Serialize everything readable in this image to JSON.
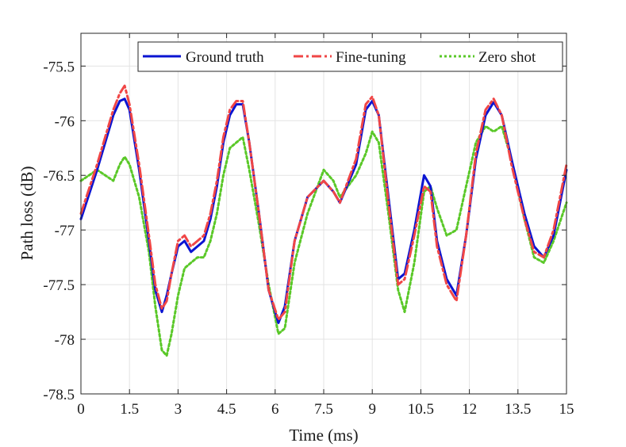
{
  "chart_data": {
    "type": "line",
    "title": "",
    "xlabel": "Time (ms)",
    "ylabel": "Path loss (dB)",
    "xlim": [
      0,
      15
    ],
    "ylim": [
      -78.5,
      -75.2
    ],
    "xticks": [
      0,
      1.5,
      3,
      4.5,
      6,
      7.5,
      9,
      10.5,
      12,
      13.5,
      15
    ],
    "xtick_labels": [
      "0",
      "1.5",
      "3",
      "4.5",
      "6",
      "7.5",
      "9",
      "10.5",
      "12",
      "13.5",
      "15"
    ],
    "yticks": [
      -78.5,
      -78,
      -77.5,
      -77,
      -76.5,
      -76,
      -75.5
    ],
    "ytick_labels": [
      "-78.5",
      "-78",
      "-77.5",
      "-77",
      "-76.5",
      "-76",
      "-75.5"
    ],
    "grid": true,
    "legend_position": "top-right",
    "colors": {
      "ground_truth": "#0a14d2",
      "fine_tuning": "#f04646",
      "zero_shot": "#5ac828"
    },
    "x": [
      0,
      0.5,
      1,
      1.2,
      1.35,
      1.5,
      1.8,
      2.1,
      2.3,
      2.5,
      2.65,
      2.8,
      3,
      3.2,
      3.4,
      3.6,
      3.8,
      4,
      4.2,
      4.4,
      4.6,
      4.8,
      5,
      5.2,
      5.5,
      5.8,
      6.1,
      6.3,
      6.6,
      7,
      7.5,
      7.8,
      8,
      8.5,
      8.8,
      9,
      9.2,
      9.5,
      9.8,
      10,
      10.3,
      10.6,
      10.8,
      11,
      11.3,
      11.6,
      11.9,
      12.2,
      12.5,
      12.75,
      13,
      13.3,
      13.7,
      14,
      14.3,
      14.6,
      15
    ],
    "series": [
      {
        "name": "Ground truth",
        "values": [
          -76.9,
          -76.45,
          -75.95,
          -75.82,
          -75.8,
          -75.9,
          -76.45,
          -77.1,
          -77.55,
          -77.75,
          -77.6,
          -77.4,
          -77.15,
          -77.1,
          -77.2,
          -77.15,
          -77.1,
          -76.9,
          -76.6,
          -76.2,
          -75.95,
          -75.85,
          -75.85,
          -76.2,
          -76.85,
          -77.55,
          -77.85,
          -77.7,
          -77.1,
          -76.7,
          -76.55,
          -76.65,
          -76.75,
          -76.4,
          -75.9,
          -75.82,
          -75.95,
          -76.7,
          -77.45,
          -77.4,
          -77.0,
          -76.5,
          -76.6,
          -77.1,
          -77.45,
          -77.6,
          -77.05,
          -76.35,
          -75.95,
          -75.83,
          -75.95,
          -76.35,
          -76.85,
          -77.15,
          -77.25,
          -77.05,
          -76.45
        ]
      },
      {
        "name": "Fine-tuning",
        "values": [
          -76.85,
          -76.4,
          -75.9,
          -75.75,
          -75.68,
          -75.85,
          -76.4,
          -77.05,
          -77.5,
          -77.72,
          -77.65,
          -77.4,
          -77.1,
          -77.05,
          -77.15,
          -77.1,
          -77.05,
          -76.85,
          -76.55,
          -76.15,
          -75.9,
          -75.82,
          -75.82,
          -76.2,
          -76.85,
          -77.55,
          -77.82,
          -77.75,
          -77.1,
          -76.7,
          -76.55,
          -76.65,
          -76.75,
          -76.35,
          -75.85,
          -75.78,
          -75.95,
          -76.75,
          -77.5,
          -77.45,
          -77.05,
          -76.6,
          -76.65,
          -77.15,
          -77.5,
          -77.65,
          -77.05,
          -76.3,
          -75.9,
          -75.8,
          -75.95,
          -76.4,
          -76.9,
          -77.2,
          -77.25,
          -77.0,
          -76.4
        ]
      },
      {
        "name": "Zero shot",
        "values": [
          -76.55,
          -76.45,
          -76.55,
          -76.4,
          -76.33,
          -76.4,
          -76.7,
          -77.2,
          -77.7,
          -78.1,
          -78.15,
          -77.95,
          -77.6,
          -77.35,
          -77.3,
          -77.25,
          -77.25,
          -77.1,
          -76.85,
          -76.5,
          -76.25,
          -76.2,
          -76.15,
          -76.45,
          -76.95,
          -77.5,
          -77.95,
          -77.9,
          -77.3,
          -76.85,
          -76.45,
          -76.55,
          -76.7,
          -76.5,
          -76.3,
          -76.1,
          -76.2,
          -76.85,
          -77.55,
          -77.75,
          -77.3,
          -76.65,
          -76.6,
          -76.8,
          -77.05,
          -77.0,
          -76.6,
          -76.2,
          -76.05,
          -76.1,
          -76.05,
          -76.35,
          -76.9,
          -77.25,
          -77.3,
          -77.1,
          -76.75
        ]
      }
    ]
  }
}
